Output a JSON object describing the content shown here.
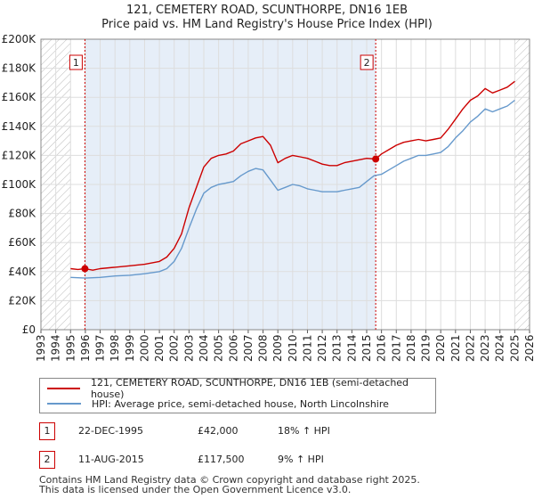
{
  "title_line1": "121, CEMETERY ROAD, SCUNTHORPE, DN16 1EB",
  "title_line2": "Price paid vs. HM Land Registry's House Price Index (HPI)",
  "colors": {
    "property": "#cc0000",
    "hpi": "#6699cc",
    "grid": "#dddddd",
    "shade": "#e6eef8",
    "hatch": "#bbbbbb"
  },
  "legend": {
    "property": "121, CEMETERY ROAD, SCUNTHORPE, DN16 1EB (semi-detached house)",
    "hpi": "HPI: Average price, semi-detached house, North Lincolnshire"
  },
  "sales": [
    {
      "num": "1",
      "date": "22-DEC-1995",
      "price": "£42,000",
      "hpi": "18% ↑ HPI",
      "year": 1995.97,
      "value": 42000
    },
    {
      "num": "2",
      "date": "11-AUG-2015",
      "price": "£117,500",
      "hpi": "9% ↑ HPI",
      "year": 2015.61,
      "value": 117500
    }
  ],
  "footer": {
    "line1": "Contains HM Land Registry data © Crown copyright and database right 2025.",
    "line2": "This data is licensed under the Open Government Licence v3.0."
  },
  "chart_data": {
    "type": "line",
    "title": "121, CEMETERY ROAD, SCUNTHORPE, DN16 1EB — Price paid vs. HM Land Registry's House Price Index (HPI)",
    "xlabel": "",
    "ylabel": "",
    "xlim": [
      1993,
      2026
    ],
    "ylim": [
      0,
      200000
    ],
    "x_ticks": [
      1993,
      1994,
      1995,
      1996,
      1997,
      1998,
      1999,
      2000,
      2001,
      2002,
      2003,
      2004,
      2005,
      2006,
      2007,
      2008,
      2009,
      2010,
      2011,
      2012,
      2013,
      2014,
      2015,
      2016,
      2017,
      2018,
      2019,
      2020,
      2021,
      2022,
      2023,
      2024,
      2025,
      2026
    ],
    "y_ticks": [
      0,
      20000,
      40000,
      60000,
      80000,
      100000,
      120000,
      140000,
      160000,
      180000,
      200000
    ],
    "y_tick_labels": [
      "£0",
      "£20K",
      "£40K",
      "£60K",
      "£80K",
      "£100K",
      "£120K",
      "£140K",
      "£160K",
      "£180K",
      "£200K"
    ],
    "data_start": 1995.0,
    "data_end": 2025.25,
    "hatched_before": 1995.0,
    "hatched_after": 2025.0,
    "shaded_range": [
      1995.97,
      2015.61
    ],
    "series": [
      {
        "name": "121, CEMETERY ROAD, SCUNTHORPE, DN16 1EB (semi-detached house)",
        "x": [
          1995.0,
          1995.5,
          1995.97,
          1996.5,
          1997.0,
          1998.0,
          1999.0,
          2000.0,
          2001.0,
          2001.5,
          2002.0,
          2002.5,
          2003.0,
          2003.5,
          2004.0,
          2004.5,
          2005.0,
          2005.5,
          2006.0,
          2006.5,
          2007.0,
          2007.5,
          2008.0,
          2008.5,
          2009.0,
          2009.5,
          2010.0,
          2010.5,
          2011.0,
          2011.5,
          2012.0,
          2012.5,
          2013.0,
          2013.5,
          2014.0,
          2014.5,
          2015.0,
          2015.61,
          2016.0,
          2016.5,
          2017.0,
          2017.5,
          2018.0,
          2018.5,
          2019.0,
          2019.5,
          2020.0,
          2020.5,
          2021.0,
          2021.5,
          2022.0,
          2022.5,
          2023.0,
          2023.5,
          2024.0,
          2024.5,
          2025.0
        ],
        "values": [
          42000,
          41500,
          42000,
          41000,
          42000,
          43000,
          44000,
          45000,
          47000,
          50000,
          56000,
          66000,
          84000,
          98000,
          112000,
          118000,
          120000,
          121000,
          123000,
          128000,
          130000,
          132000,
          133000,
          127000,
          115000,
          118000,
          120000,
          119000,
          118000,
          116000,
          114000,
          113000,
          113000,
          115000,
          116000,
          117000,
          118000,
          117500,
          121000,
          124000,
          127000,
          129000,
          130000,
          131000,
          130000,
          131000,
          132000,
          138000,
          145000,
          152000,
          158000,
          161000,
          166000,
          163000,
          165000,
          167000,
          171000
        ]
      },
      {
        "name": "HPI: Average price, semi-detached house, North Lincolnshire",
        "x": [
          1995.0,
          1996.0,
          1997.0,
          1998.0,
          1999.0,
          2000.0,
          2001.0,
          2001.5,
          2002.0,
          2002.5,
          2003.0,
          2003.5,
          2004.0,
          2004.5,
          2005.0,
          2005.5,
          2006.0,
          2006.5,
          2007.0,
          2007.5,
          2008.0,
          2008.5,
          2009.0,
          2009.5,
          2010.0,
          2010.5,
          2011.0,
          2011.5,
          2012.0,
          2012.5,
          2013.0,
          2013.5,
          2014.0,
          2014.5,
          2015.0,
          2015.5,
          2016.0,
          2016.5,
          2017.0,
          2017.5,
          2018.0,
          2018.5,
          2019.0,
          2019.5,
          2020.0,
          2020.5,
          2021.0,
          2021.5,
          2022.0,
          2022.5,
          2023.0,
          2023.5,
          2024.0,
          2024.5,
          2025.0
        ],
        "values": [
          36000,
          35500,
          36000,
          37000,
          37500,
          38500,
          40000,
          42000,
          47000,
          56000,
          70000,
          83000,
          94000,
          98000,
          100000,
          101000,
          102000,
          106000,
          109000,
          111000,
          110000,
          103000,
          96000,
          98000,
          100000,
          99000,
          97000,
          96000,
          95000,
          95000,
          95000,
          96000,
          97000,
          98000,
          102000,
          106000,
          107000,
          110000,
          113000,
          116000,
          118000,
          120000,
          120000,
          121000,
          122000,
          126000,
          132000,
          137000,
          143000,
          147000,
          152000,
          150000,
          152000,
          154000,
          158000
        ]
      }
    ]
  }
}
